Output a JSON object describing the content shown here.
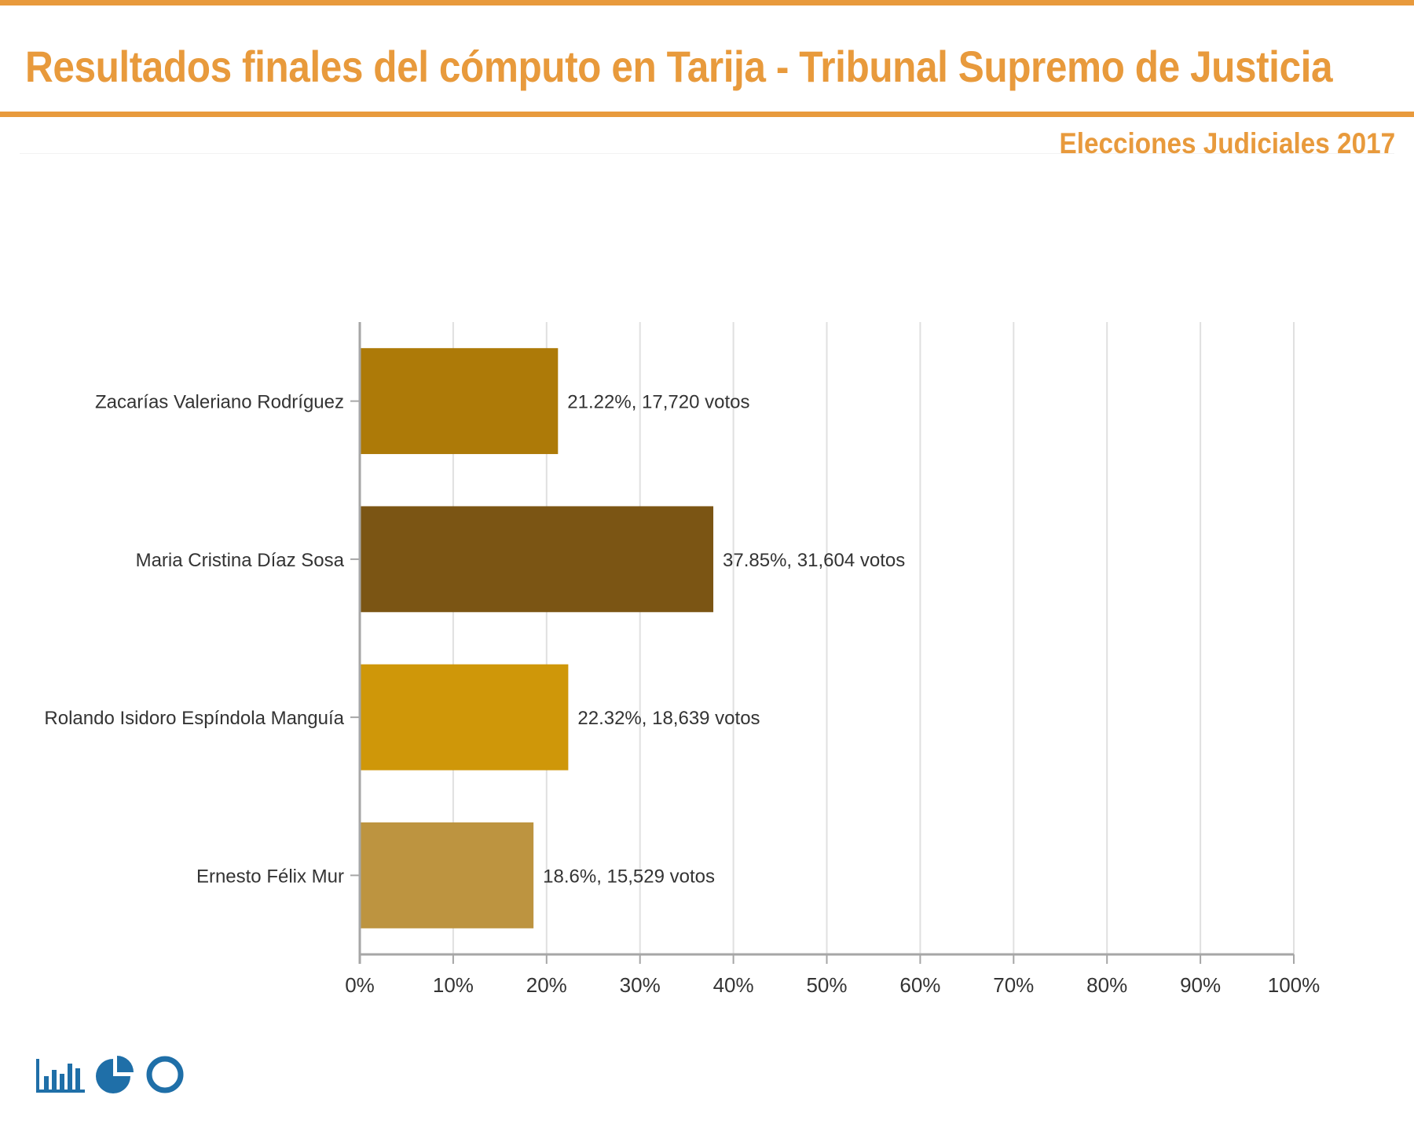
{
  "header": {
    "title": "Resultados finales del cómputo en Tarija - Tribunal Supremo de Justicia",
    "subtitle": "Elecciones Judiciales 2017"
  },
  "colors": {
    "accent": "#e89a3c",
    "grid": "#e0e0e0",
    "axis": "#a6a6a6",
    "text": "#333333",
    "icons": "#1f6fa8"
  },
  "icons": {
    "bar_chart": "bar-chart-icon",
    "pie_chart": "pie-chart-icon",
    "donut_chart": "donut-chart-icon"
  },
  "chart_data": {
    "type": "bar",
    "orientation": "horizontal",
    "categories": [
      "Zacarías Valeriano Rodríguez",
      "Maria Cristina Díaz Sosa",
      "Rolando Isidoro Espíndola Manguía",
      "Ernesto Félix Mur"
    ],
    "values": [
      21.22,
      37.85,
      22.32,
      18.6
    ],
    "votes": [
      17720,
      31604,
      18639,
      15529
    ],
    "data_labels": [
      "21.22%,  17,720 votos",
      "37.85%,  31,604 votos",
      "22.32%,  18,639 votos",
      "18.6%,  15,529 votos"
    ],
    "bar_colors": [
      "#ad7a08",
      "#7b5514",
      "#cf9709",
      "#bd9440"
    ],
    "xlim": [
      0,
      100
    ],
    "x_ticks": [
      0,
      10,
      20,
      30,
      40,
      50,
      60,
      70,
      80,
      90,
      100
    ],
    "x_tick_labels": [
      "0%",
      "10%",
      "20%",
      "30%",
      "40%",
      "50%",
      "60%",
      "70%",
      "80%",
      "90%",
      "100%"
    ],
    "grid": true,
    "legend": false,
    "title": "",
    "xlabel": "",
    "ylabel": ""
  }
}
